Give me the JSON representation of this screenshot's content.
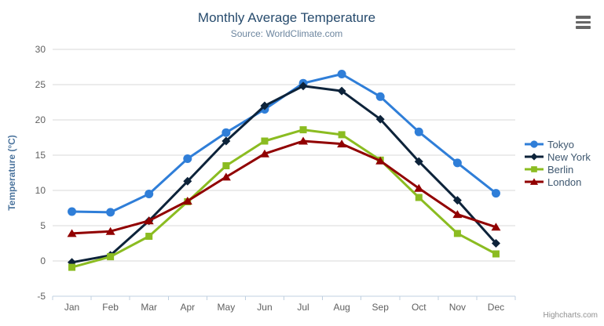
{
  "chart": {
    "credits": "Highcharts.com",
    "context_menu_icon": "hamburger-menu-icon"
  },
  "chart_data": {
    "type": "line",
    "title": "Monthly Average Temperature",
    "subtitle": "Source: WorldClimate.com",
    "categories": [
      "Jan",
      "Feb",
      "Mar",
      "Apr",
      "May",
      "Jun",
      "Jul",
      "Aug",
      "Sep",
      "Oct",
      "Nov",
      "Dec"
    ],
    "xlabel": "",
    "ylabel": "Temperature (°C)",
    "ylim": [
      -5,
      30
    ],
    "ytick_step": 5,
    "grid": true,
    "legend_position": "right",
    "series": [
      {
        "name": "Tokyo",
        "color": "#2f7ed8",
        "marker": "circle",
        "values": [
          7.0,
          6.9,
          9.5,
          14.5,
          18.2,
          21.5,
          25.2,
          26.5,
          23.3,
          18.3,
          13.9,
          9.6
        ]
      },
      {
        "name": "New York",
        "color": "#0d233a",
        "marker": "diamond",
        "values": [
          -0.2,
          0.8,
          5.7,
          11.3,
          17.0,
          22.0,
          24.8,
          24.1,
          20.1,
          14.1,
          8.6,
          2.5
        ]
      },
      {
        "name": "Berlin",
        "color": "#8bbc21",
        "marker": "square",
        "values": [
          -0.9,
          0.6,
          3.5,
          8.4,
          13.5,
          17.0,
          18.6,
          17.9,
          14.3,
          9.0,
          3.9,
          1.0
        ]
      },
      {
        "name": "London",
        "color": "#910000",
        "marker": "triangle",
        "values": [
          3.9,
          4.2,
          5.7,
          8.5,
          11.9,
          15.2,
          17.0,
          16.6,
          14.2,
          10.3,
          6.6,
          4.8
        ]
      }
    ]
  },
  "theme": {
    "background": "#ffffff",
    "title_color": "#274b6d",
    "subtitle_color": "#6d869f",
    "axis_title_color": "#4d759e",
    "axis_label_color": "#606060",
    "legend_text_color": "#3e576f",
    "grid_color": "#d8d8d8",
    "axis_line_color": "#c0d0e0",
    "credits_color": "#909090",
    "menu_icon_color": "#666666"
  }
}
